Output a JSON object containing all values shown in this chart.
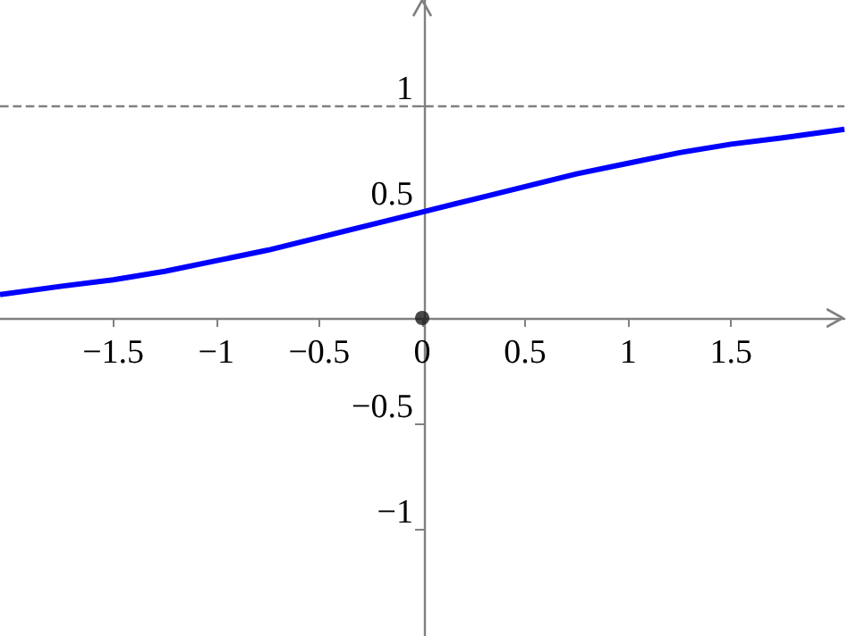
{
  "chart_data": {
    "type": "line",
    "x": [
      -2.05,
      -1.75,
      -1.5,
      -1.25,
      -1,
      -0.75,
      -0.5,
      -0.25,
      0,
      0.25,
      0.5,
      0.75,
      1,
      1.25,
      1.5,
      1.75,
      2.05
    ],
    "series": [
      {
        "color": "#0000ff",
        "values": [
          0.11,
          0.15,
          0.18,
          0.22,
          0.27,
          0.32,
          0.38,
          0.44,
          0.5,
          0.56,
          0.62,
          0.68,
          0.73,
          0.78,
          0.82,
          0.85,
          0.89
        ]
      },
      {
        "type": "scatter",
        "color": "#1a1a1a",
        "x": [
          0
        ],
        "values": [
          0
        ],
        "marker": "circle"
      }
    ],
    "xlim": [
      -2.05,
      2.05
    ],
    "ylim": [
      -1.5,
      1.5
    ],
    "xticks": [
      {
        "value": -1.5,
        "label": "−1.5"
      },
      {
        "value": -1,
        "label": "−1"
      },
      {
        "value": -0.5,
        "label": "−0.5"
      },
      0,
      0.5,
      1,
      1.5
    ],
    "yticks": [
      {
        "value": -1,
        "label": "−1"
      },
      {
        "value": -0.5,
        "label": "−0.5"
      },
      0.5,
      1
    ],
    "ref_lines": [
      {
        "axis": "y",
        "value": 1,
        "color": "#808080",
        "line_style": "dashed"
      }
    ],
    "grid": false,
    "marker": "none"
  }
}
